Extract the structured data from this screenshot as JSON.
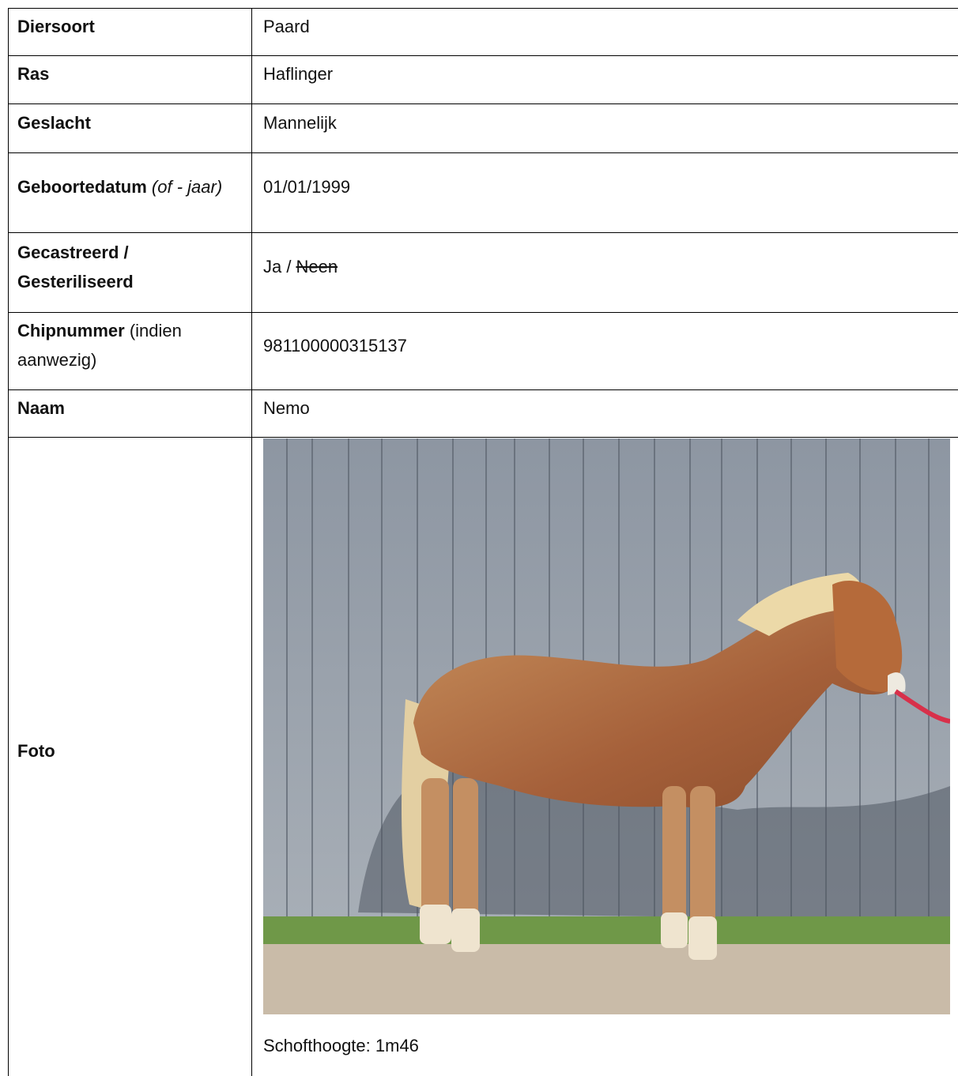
{
  "table": {
    "rows": [
      {
        "label": "Diersoort",
        "value": "Paard"
      },
      {
        "label": "Ras",
        "value": "Haflinger"
      },
      {
        "label": "Geslacht",
        "value": "Mannelijk"
      },
      {
        "label": "Geboortedatum",
        "label_note": "(of - jaar)",
        "value": "01/01/1999"
      },
      {
        "label": "Gecastreerd / Gesteriliseerd",
        "value": "Ja /",
        "value_struck": "Neen"
      },
      {
        "label": "Chipnummer",
        "label_note": "(indien aanwezig)",
        "value": "981100000315137"
      },
      {
        "label": "Naam",
        "value": "Nemo"
      },
      {
        "label": "Foto",
        "caption": "Schofthoogte: 1m46"
      }
    ]
  }
}
